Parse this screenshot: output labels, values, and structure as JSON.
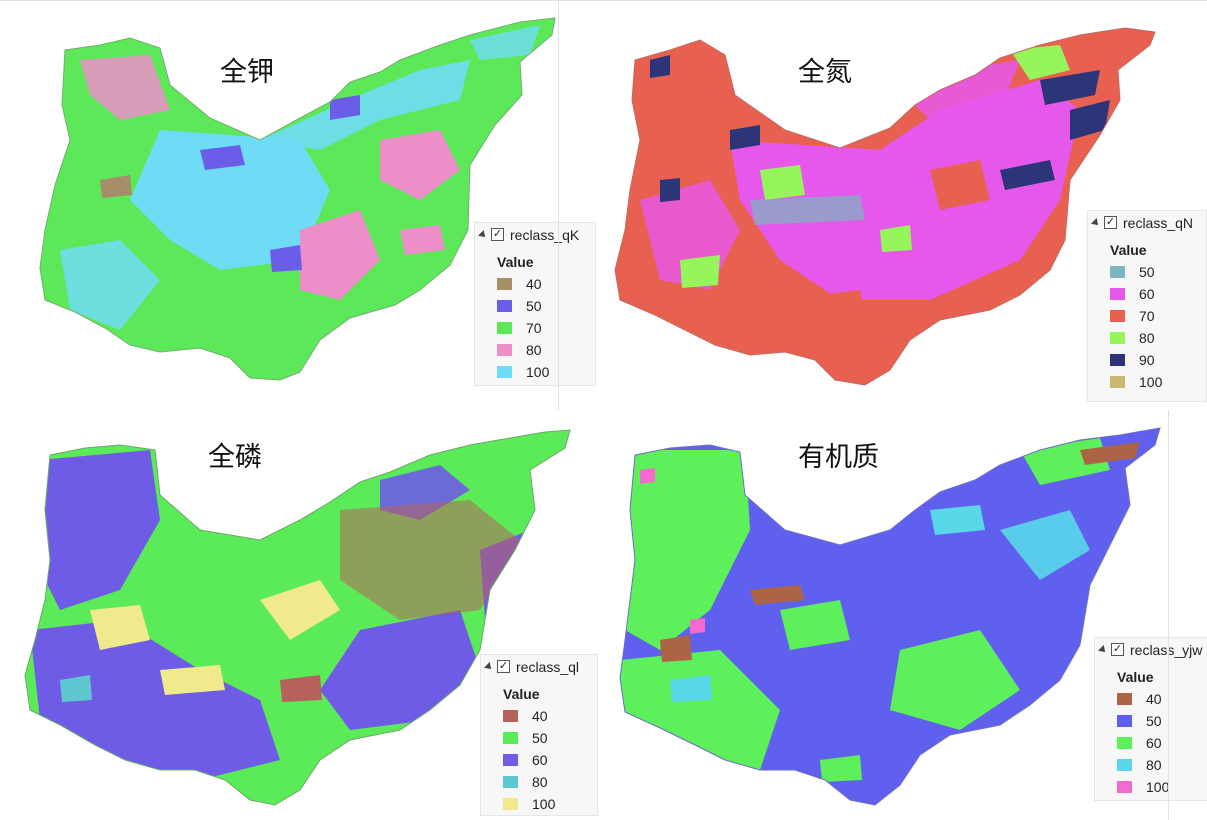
{
  "maps": [
    {
      "id": "qK",
      "title": "全钾",
      "legend": {
        "layer": "reclass_qK",
        "header": "Value",
        "items": [
          {
            "label": "40",
            "color": "#a58e68"
          },
          {
            "label": "50",
            "color": "#6a5de8"
          },
          {
            "label": "70",
            "color": "#5de85a"
          },
          {
            "label": "80",
            "color": "#ec8ec8"
          },
          {
            "label": "100",
            "color": "#6fdcf5"
          }
        ]
      }
    },
    {
      "id": "qN",
      "title": "全氮",
      "legend": {
        "layer": "reclass_qN",
        "header": "Value",
        "items": [
          {
            "label": "50",
            "color": "#7ab7c0"
          },
          {
            "label": "60",
            "color": "#e658ec"
          },
          {
            "label": "70",
            "color": "#e8604f"
          },
          {
            "label": "80",
            "color": "#97f55c"
          },
          {
            "label": "90",
            "color": "#2c3577"
          },
          {
            "label": "100",
            "color": "#ccb873"
          }
        ]
      }
    },
    {
      "id": "ql",
      "title": "全磷",
      "legend": {
        "layer": "reclass_ql",
        "header": "Value",
        "items": [
          {
            "label": "40",
            "color": "#b6625c"
          },
          {
            "label": "50",
            "color": "#5ceb58"
          },
          {
            "label": "60",
            "color": "#6e5ce6"
          },
          {
            "label": "80",
            "color": "#5ec8d0"
          },
          {
            "label": "100",
            "color": "#f1ea8c"
          }
        ]
      }
    },
    {
      "id": "yjw",
      "title": "有机质",
      "legend": {
        "layer": "reclass_yjw",
        "header": "Value",
        "items": [
          {
            "label": "40",
            "color": "#ad6445"
          },
          {
            "label": "50",
            "color": "#6060ee"
          },
          {
            "label": "60",
            "color": "#5ef05a"
          },
          {
            "label": "80",
            "color": "#5ad8ea"
          },
          {
            "label": "100",
            "color": "#f46acf"
          }
        ]
      }
    }
  ]
}
